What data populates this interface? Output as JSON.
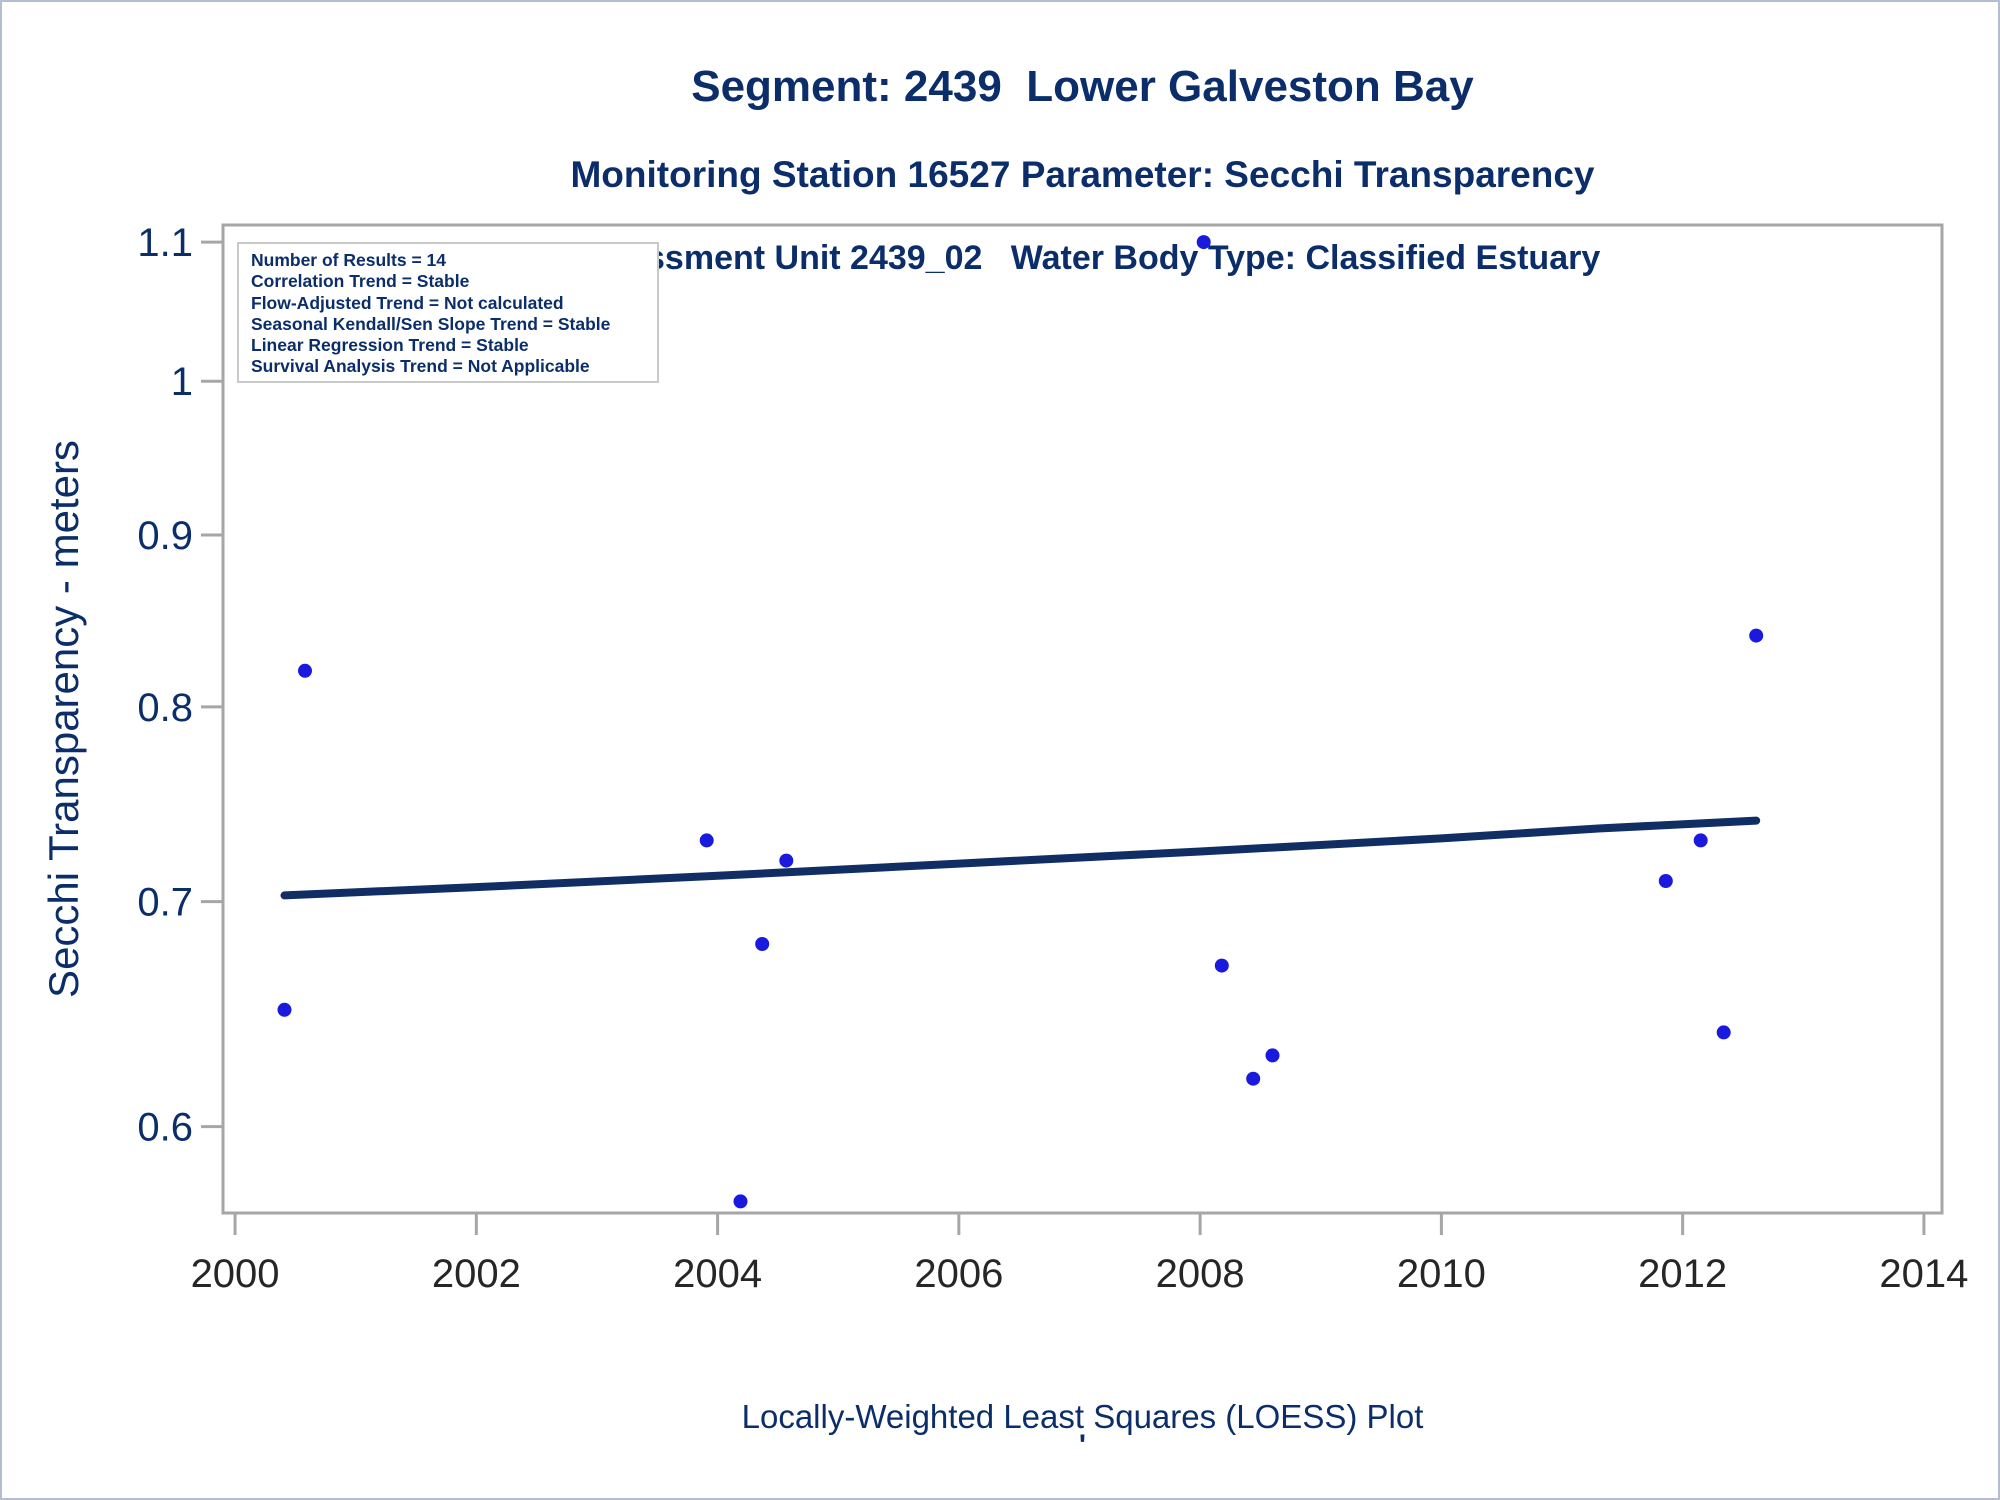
{
  "page": {
    "titles": {
      "line1": "Segment: 2439  Lower Galveston Bay",
      "line2": "Monitoring Station 16527 Parameter: Secchi Transparency",
      "line3": "Assessment Unit 2439_02   Water Body Type: Classified Estuary"
    },
    "footer": {
      "caption": "Locally-Weighted Least Squares (LOESS) Plot",
      "mark": "'"
    }
  },
  "stats_box": {
    "lines": [
      "Number of Results = 14",
      "Correlation Trend = Stable",
      "Flow-Adjusted Trend = Not calculated",
      "Seasonal Kendall/Sen Slope Trend = Stable",
      "Linear Regression Trend = Stable",
      "Survival Analysis Trend = Not Applicable"
    ]
  },
  "colors": {
    "navy_text": "#0b2e6b",
    "point_blue": "#1a1ade",
    "trend_line": "#102d64",
    "axis_gray": "#a6a6a6",
    "x_tick_label": "#262626",
    "box_border": "#c9c9c9",
    "page_border": "#b4bdd1"
  },
  "chart_data": {
    "type": "scatter",
    "title": "Segment: 2439  Lower Galveston Bay",
    "subtitle": "Monitoring Station 16527 Parameter: Secchi Transparency",
    "subtitle2": "Assessment Unit 2439_02   Water Body Type: Classified Estuary",
    "xlabel": "",
    "ylabel": "Secchi Transparency - meters",
    "y_scale": "log",
    "grid": false,
    "legend_position": "top-left",
    "xlim": [
      1999.9,
      2014.15
    ],
    "ylim": [
      0.5655,
      1.113
    ],
    "x_ticks": [
      "2000",
      "2002",
      "2004",
      "2006",
      "2008",
      "2010",
      "2012",
      "2014"
    ],
    "x_tick_values": [
      2000,
      2002,
      2004,
      2006,
      2008,
      2010,
      2012,
      2014
    ],
    "y_ticks": [
      "0.6",
      "0.7",
      "0.8",
      "0.9",
      "1",
      "1.1"
    ],
    "y_tick_values": [
      0.6,
      0.7,
      0.8,
      0.9,
      1.0,
      1.1
    ],
    "points": [
      {
        "x": 2000.41,
        "y": 0.65
      },
      {
        "x": 2000.58,
        "y": 0.82
      },
      {
        "x": 2003.91,
        "y": 0.73
      },
      {
        "x": 2004.19,
        "y": 0.57
      },
      {
        "x": 2004.37,
        "y": 0.68
      },
      {
        "x": 2004.57,
        "y": 0.72
      },
      {
        "x": 2008.03,
        "y": 1.1
      },
      {
        "x": 2008.18,
        "y": 0.67
      },
      {
        "x": 2008.44,
        "y": 0.62
      },
      {
        "x": 2008.6,
        "y": 0.63
      },
      {
        "x": 2011.86,
        "y": 0.71
      },
      {
        "x": 2012.15,
        "y": 0.73
      },
      {
        "x": 2012.34,
        "y": 0.64
      },
      {
        "x": 2012.61,
        "y": 0.84
      }
    ],
    "loess_line": [
      {
        "x": 2000.41,
        "y": 0.703
      },
      {
        "x": 2002.0,
        "y": 0.707
      },
      {
        "x": 2004.0,
        "y": 0.7125
      },
      {
        "x": 2006.0,
        "y": 0.7185
      },
      {
        "x": 2008.0,
        "y": 0.7245
      },
      {
        "x": 2010.0,
        "y": 0.731
      },
      {
        "x": 2011.3,
        "y": 0.736
      },
      {
        "x": 2012.61,
        "y": 0.74
      }
    ]
  }
}
